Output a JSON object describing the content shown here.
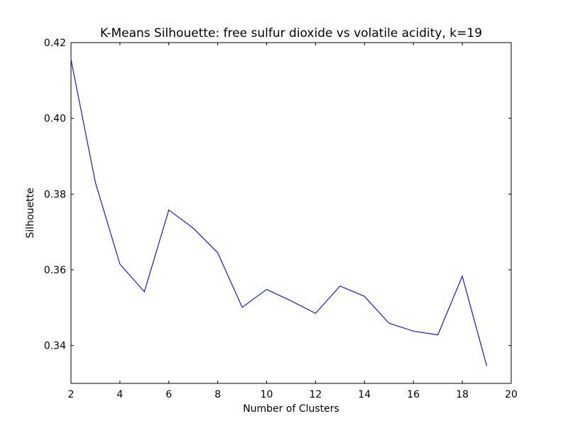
{
  "chart_data": {
    "type": "line",
    "title": "K-Means Silhouette: free sulfur dioxide vs volatile acidity, k=19",
    "xlabel": "Number of Clusters",
    "ylabel": "Silhouette",
    "xlim": [
      2,
      20
    ],
    "ylim": [
      0.33,
      0.42
    ],
    "xticks": [
      2,
      4,
      6,
      8,
      10,
      12,
      14,
      16,
      18,
      20
    ],
    "xtick_labels": [
      "2",
      "4",
      "6",
      "8",
      "10",
      "12",
      "14",
      "16",
      "18",
      "20"
    ],
    "yticks": [
      0.34,
      0.36,
      0.38,
      0.4,
      0.42
    ],
    "ytick_labels": [
      "0.34",
      "0.36",
      "0.38",
      "0.40",
      "0.42"
    ],
    "grid": false,
    "line_color": "#0000ff",
    "x": [
      2,
      3,
      4,
      5,
      6,
      7,
      8,
      9,
      10,
      11,
      12,
      13,
      14,
      15,
      16,
      17,
      18,
      19
    ],
    "y": [
      0.4155,
      0.383,
      0.3615,
      0.3542,
      0.3758,
      0.371,
      0.3645,
      0.3501,
      0.3548,
      0.3518,
      0.3485,
      0.3557,
      0.353,
      0.3459,
      0.3438,
      0.3428,
      0.3583,
      0.3346
    ]
  }
}
